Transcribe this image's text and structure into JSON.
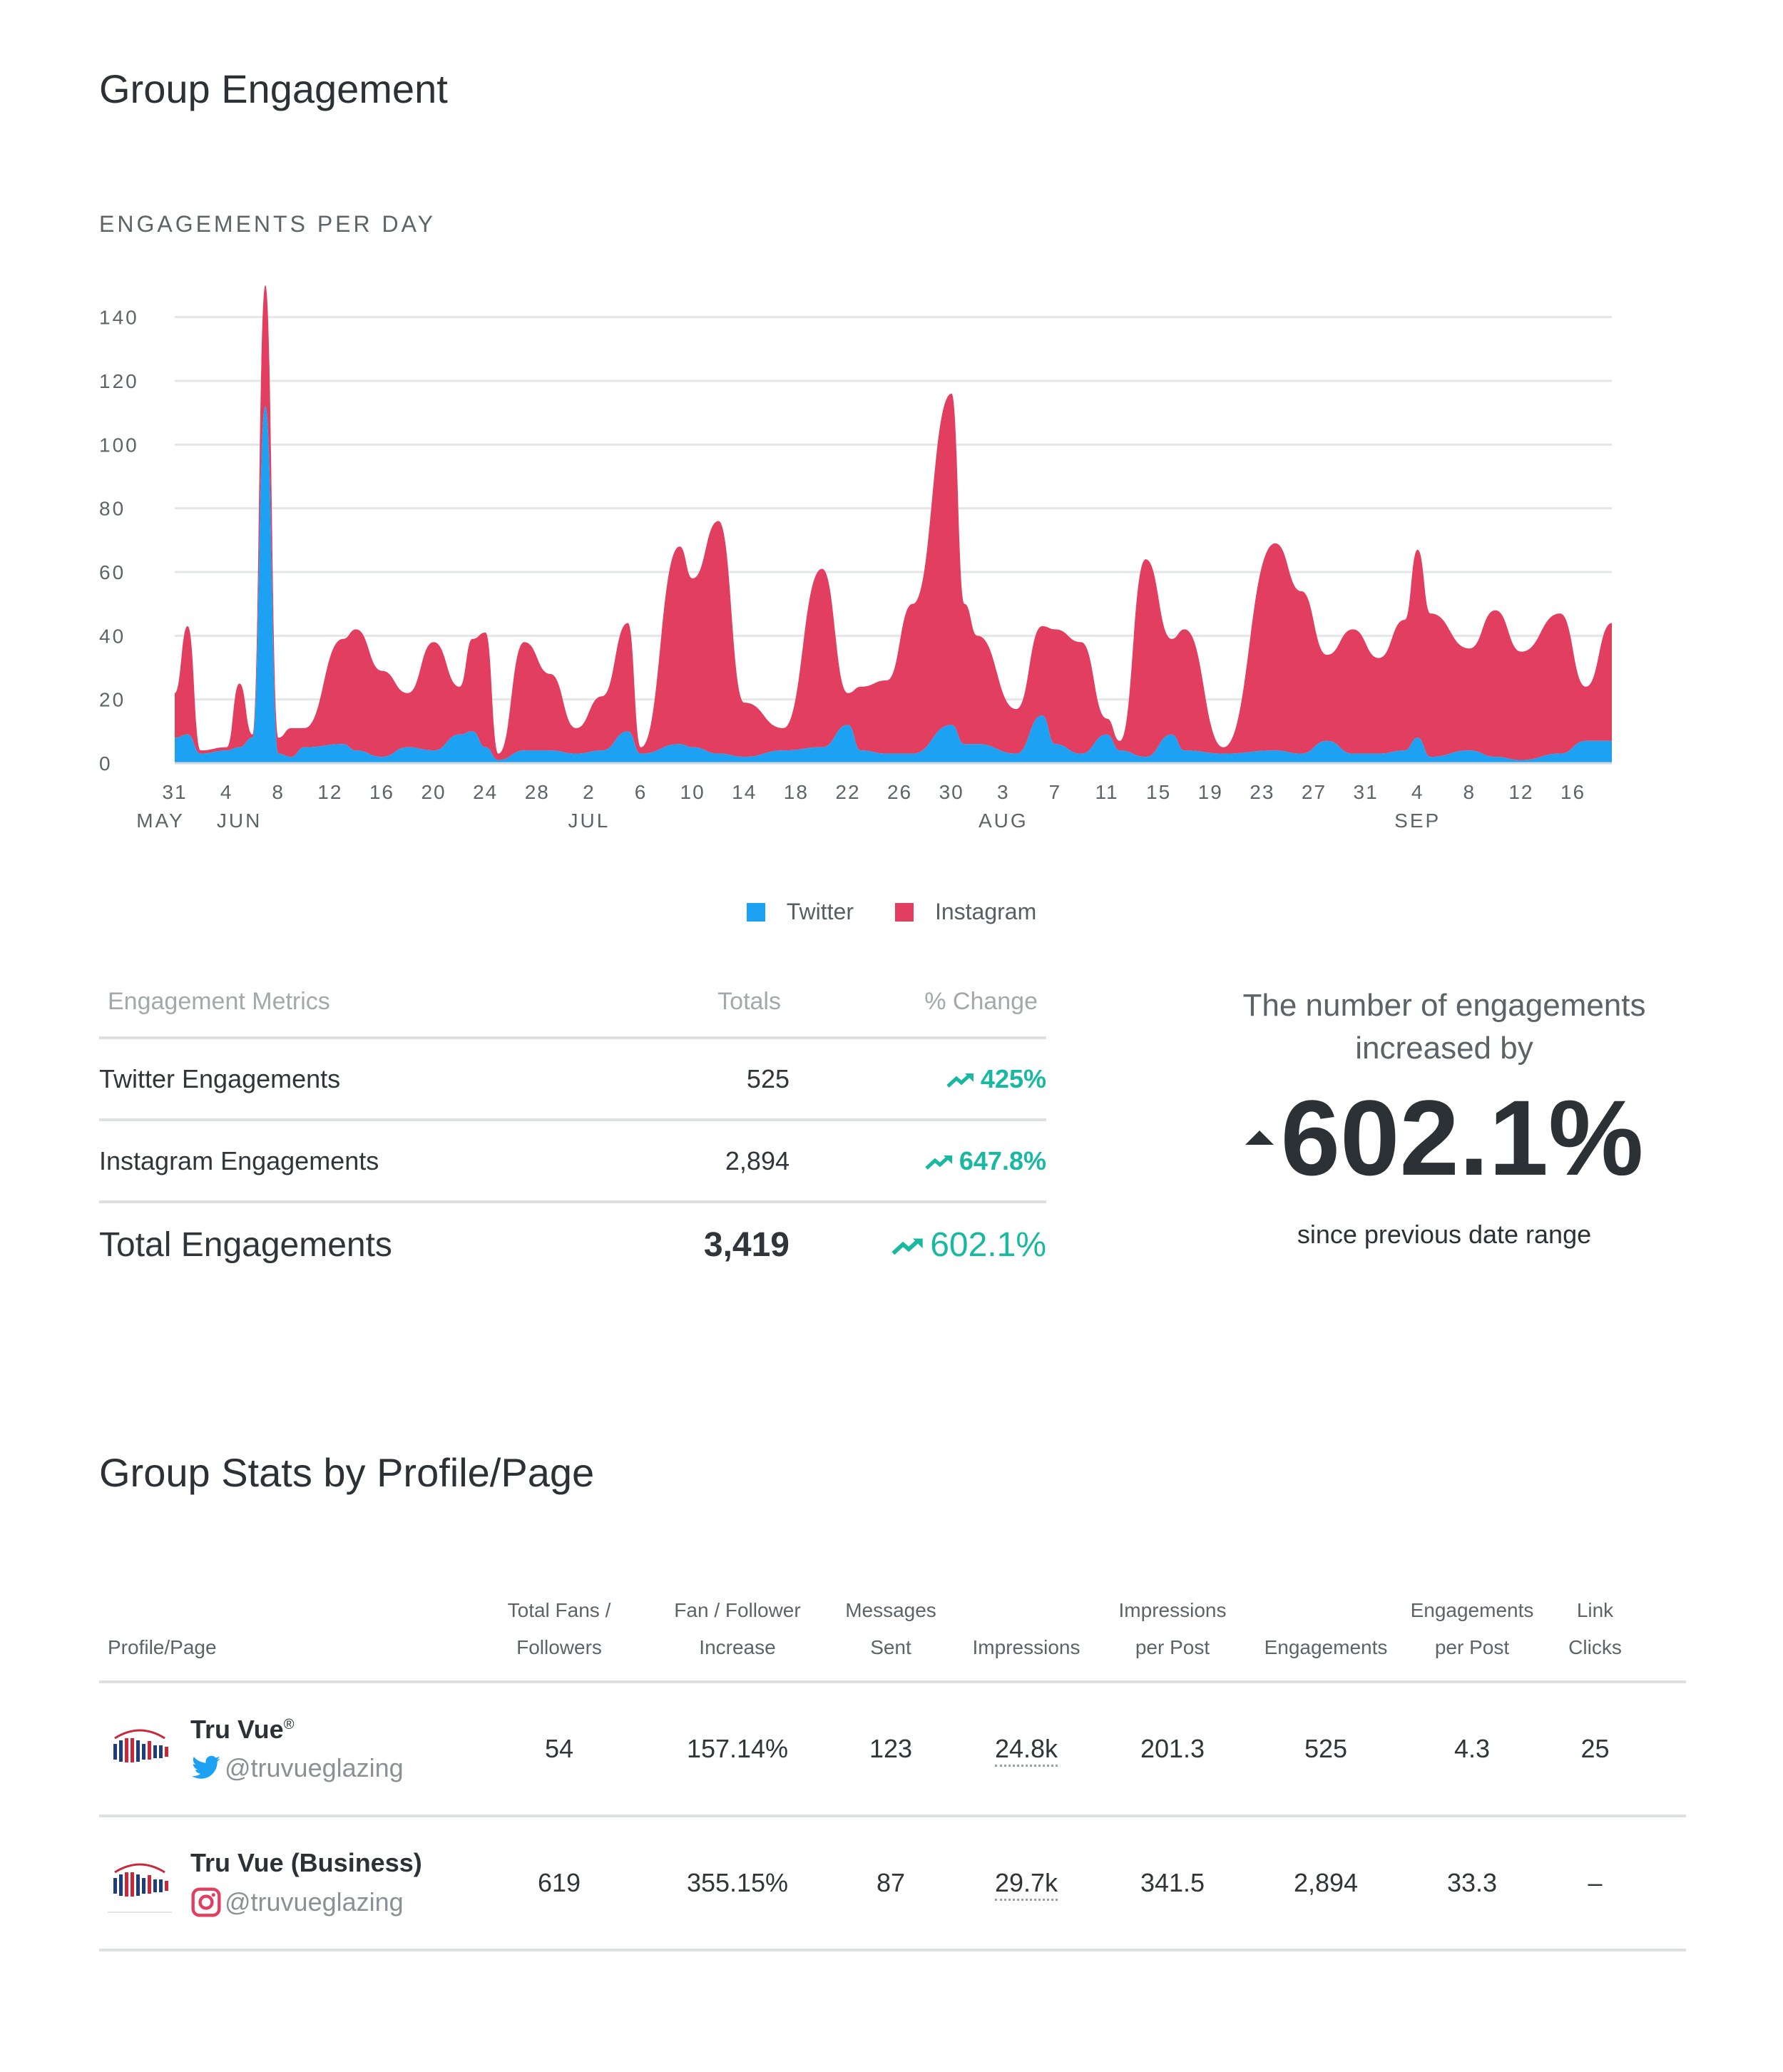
{
  "page_title": "Group Engagement",
  "chart_section_label": "ENGAGEMENTS PER DAY",
  "colors": {
    "twitter": "#1da1f2",
    "instagram": "#e23e5f",
    "positive": "#19b8a1",
    "grid": "#e3e5e6"
  },
  "chart_data": {
    "type": "area",
    "stacked": true,
    "x_start": "2018-05-31",
    "x_end": "2018-09-19",
    "ylim": [
      0,
      150
    ],
    "yticks": [
      0,
      20,
      40,
      60,
      80,
      100,
      120,
      140
    ],
    "x_tick_labels": [
      "31",
      "4",
      "8",
      "12",
      "16",
      "20",
      "24",
      "28",
      "2",
      "6",
      "10",
      "14",
      "18",
      "22",
      "26",
      "30",
      "3",
      "7",
      "11",
      "15",
      "19",
      "23",
      "27",
      "31",
      "4",
      "8",
      "12",
      "16"
    ],
    "month_labels": [
      "MAY",
      "JUN",
      "JUL",
      "AUG",
      "SEP"
    ],
    "grid": true,
    "legend_position": "bottom-center",
    "series": [
      {
        "name": "Twitter",
        "color": "#1da1f2",
        "points": [
          [
            "2018-05-31",
            8
          ],
          [
            "2018-06-01",
            9
          ],
          [
            "2018-06-02",
            3
          ],
          [
            "2018-06-04",
            4
          ],
          [
            "2018-06-05",
            5
          ],
          [
            "2018-06-06",
            8
          ],
          [
            "2018-06-07",
            112
          ],
          [
            "2018-06-08",
            3
          ],
          [
            "2018-06-09",
            2
          ],
          [
            "2018-06-10",
            5
          ],
          [
            "2018-06-13",
            6
          ],
          [
            "2018-06-14",
            4
          ],
          [
            "2018-06-16",
            2
          ],
          [
            "2018-06-18",
            5
          ],
          [
            "2018-06-20",
            4
          ],
          [
            "2018-06-22",
            9
          ],
          [
            "2018-06-23",
            10
          ],
          [
            "2018-06-24",
            5
          ],
          [
            "2018-06-25",
            1
          ],
          [
            "2018-06-27",
            4
          ],
          [
            "2018-06-29",
            4
          ],
          [
            "2018-07-01",
            3
          ],
          [
            "2018-07-03",
            4
          ],
          [
            "2018-07-05",
            10
          ],
          [
            "2018-07-06",
            3
          ],
          [
            "2018-07-09",
            6
          ],
          [
            "2018-07-10",
            5
          ],
          [
            "2018-07-12",
            3
          ],
          [
            "2018-07-14",
            2
          ],
          [
            "2018-07-17",
            4
          ],
          [
            "2018-07-20",
            5
          ],
          [
            "2018-07-22",
            12
          ],
          [
            "2018-07-23",
            4
          ],
          [
            "2018-07-25",
            3
          ],
          [
            "2018-07-27",
            3
          ],
          [
            "2018-07-30",
            12
          ],
          [
            "2018-07-31",
            6
          ],
          [
            "2018-08-01",
            6
          ],
          [
            "2018-08-04",
            3
          ],
          [
            "2018-08-06",
            15
          ],
          [
            "2018-08-07",
            6
          ],
          [
            "2018-08-09",
            3
          ],
          [
            "2018-08-11",
            9
          ],
          [
            "2018-08-12",
            4
          ],
          [
            "2018-08-14",
            2
          ],
          [
            "2018-08-16",
            9
          ],
          [
            "2018-08-17",
            4
          ],
          [
            "2018-08-20",
            3
          ],
          [
            "2018-08-24",
            4
          ],
          [
            "2018-08-26",
            3
          ],
          [
            "2018-08-28",
            7
          ],
          [
            "2018-08-30",
            3
          ],
          [
            "2018-09-01",
            3
          ],
          [
            "2018-09-03",
            4
          ],
          [
            "2018-09-04",
            8
          ],
          [
            "2018-09-05",
            2
          ],
          [
            "2018-09-08",
            4
          ],
          [
            "2018-09-10",
            2
          ],
          [
            "2018-09-12",
            1
          ],
          [
            "2018-09-15",
            3
          ],
          [
            "2018-09-17",
            7
          ],
          [
            "2018-09-19",
            7
          ]
        ]
      },
      {
        "name": "Instagram",
        "color": "#e23e5f",
        "points": [
          [
            "2018-05-31",
            14
          ],
          [
            "2018-06-01",
            34
          ],
          [
            "2018-06-02",
            1
          ],
          [
            "2018-06-04",
            1
          ],
          [
            "2018-06-05",
            20
          ],
          [
            "2018-06-06",
            1
          ],
          [
            "2018-06-07",
            38
          ],
          [
            "2018-06-08",
            5
          ],
          [
            "2018-06-09",
            9
          ],
          [
            "2018-06-10",
            6
          ],
          [
            "2018-06-13",
            33
          ],
          [
            "2018-06-14",
            38
          ],
          [
            "2018-06-16",
            27
          ],
          [
            "2018-06-18",
            17
          ],
          [
            "2018-06-20",
            34
          ],
          [
            "2018-06-22",
            15
          ],
          [
            "2018-06-23",
            29
          ],
          [
            "2018-06-24",
            36
          ],
          [
            "2018-06-25",
            2
          ],
          [
            "2018-06-27",
            34
          ],
          [
            "2018-06-29",
            24
          ],
          [
            "2018-07-01",
            8
          ],
          [
            "2018-07-03",
            17
          ],
          [
            "2018-07-05",
            34
          ],
          [
            "2018-07-06",
            2
          ],
          [
            "2018-07-09",
            62
          ],
          [
            "2018-07-10",
            53
          ],
          [
            "2018-07-12",
            73
          ],
          [
            "2018-07-14",
            17
          ],
          [
            "2018-07-17",
            7
          ],
          [
            "2018-07-20",
            56
          ],
          [
            "2018-07-22",
            10
          ],
          [
            "2018-07-23",
            20
          ],
          [
            "2018-07-25",
            23
          ],
          [
            "2018-07-27",
            47
          ],
          [
            "2018-07-30",
            104
          ],
          [
            "2018-07-31",
            44
          ],
          [
            "2018-08-01",
            34
          ],
          [
            "2018-08-04",
            14
          ],
          [
            "2018-08-06",
            28
          ],
          [
            "2018-08-07",
            36
          ],
          [
            "2018-08-09",
            35
          ],
          [
            "2018-08-11",
            5
          ],
          [
            "2018-08-12",
            3
          ],
          [
            "2018-08-14",
            62
          ],
          [
            "2018-08-16",
            30
          ],
          [
            "2018-08-17",
            38
          ],
          [
            "2018-08-20",
            2
          ],
          [
            "2018-08-24",
            65
          ],
          [
            "2018-08-26",
            51
          ],
          [
            "2018-08-28",
            27
          ],
          [
            "2018-08-30",
            39
          ],
          [
            "2018-09-01",
            30
          ],
          [
            "2018-09-03",
            41
          ],
          [
            "2018-09-04",
            59
          ],
          [
            "2018-09-05",
            45
          ],
          [
            "2018-09-08",
            32
          ],
          [
            "2018-09-10",
            46
          ],
          [
            "2018-09-12",
            34
          ],
          [
            "2018-09-15",
            44
          ],
          [
            "2018-09-17",
            17
          ],
          [
            "2018-09-19",
            37
          ]
        ]
      }
    ]
  },
  "legend": [
    {
      "label": "Twitter",
      "color": "#1da1f2"
    },
    {
      "label": "Instagram",
      "color": "#e23e5f"
    }
  ],
  "metrics_table": {
    "headers": {
      "metric": "Engagement Metrics",
      "totals": "Totals",
      "change": "% Change"
    },
    "rows": [
      {
        "metric": "Twitter Engagements",
        "total": "525",
        "change": "425%"
      },
      {
        "metric": "Instagram Engagements",
        "total": "2,894",
        "change": "647.8%"
      }
    ],
    "total_row": {
      "metric": "Total Engagements",
      "total": "3,419",
      "change": "602.1%"
    }
  },
  "summary": {
    "line1": "The number of engagements",
    "line2": "increased by",
    "value": "602.1%",
    "caption": "since previous date range"
  },
  "stats_title": "Group Stats by Profile/Page",
  "stats_table": {
    "headers": {
      "profile": "Profile/Page",
      "fans_1": "Total Fans /",
      "fans_2": "Followers",
      "inc_1": "Fan / Follower",
      "inc_2": "Increase",
      "msg_1": "Messages",
      "msg_2": "Sent",
      "imp": "Impressions",
      "ipp_1": "Impressions",
      "ipp_2": "per Post",
      "eng": "Engagements",
      "epp_1": "Engagements",
      "epp_2": "per Post",
      "link_1": "Link",
      "link_2": "Clicks"
    },
    "rows": [
      {
        "name": "Tru Vue",
        "name_sup": "®",
        "handle": "@truvueglazing",
        "network_icon": "twitter-icon",
        "fans": "54",
        "increase": "157.14%",
        "messages": "123",
        "impressions": "24.8k",
        "impressions_per_post": "201.3",
        "engagements": "525",
        "engagements_per_post": "4.3",
        "link_clicks": "25"
      },
      {
        "name": "Tru Vue (Business)",
        "name_sup": "",
        "handle": "@truvueglazing",
        "network_icon": "instagram-icon",
        "fans": "619",
        "increase": "355.15%",
        "messages": "87",
        "impressions": "29.7k",
        "impressions_per_post": "341.5",
        "engagements": "2,894",
        "engagements_per_post": "33.3",
        "link_clicks": "–"
      }
    ]
  }
}
